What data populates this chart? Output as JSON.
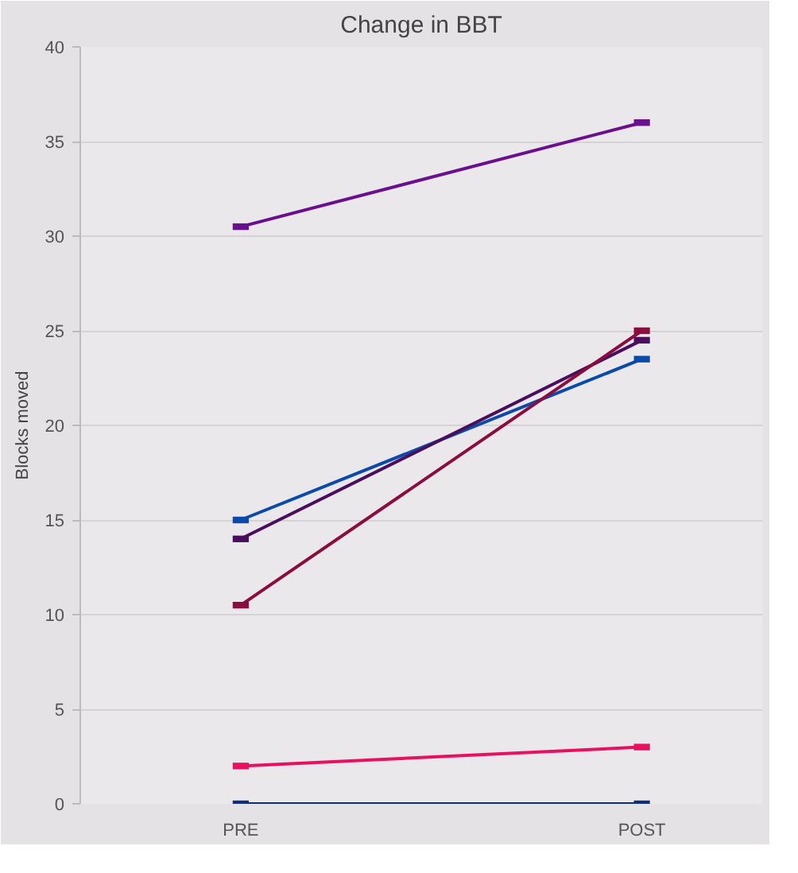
{
  "chart_data": {
    "type": "line",
    "title": "Change in BBT",
    "ylabel": "Blocks moved",
    "categories": [
      "PRE",
      "POST"
    ],
    "series": [
      {
        "color": "#6a0f8e",
        "values": [
          30.5,
          36
        ]
      },
      {
        "color": "#0b4aa8",
        "values": [
          15,
          23.5
        ]
      },
      {
        "color": "#4a0e5c",
        "values": [
          14,
          24.5
        ]
      },
      {
        "color": "#8b0c3f",
        "values": [
          10.5,
          25
        ]
      },
      {
        "color": "#e8115f",
        "values": [
          2,
          3
        ]
      },
      {
        "color": "#0b2f7e",
        "values": [
          0,
          0
        ]
      }
    ],
    "ylim": [
      0,
      40
    ],
    "yticks": [
      0,
      5,
      10,
      15,
      20,
      25,
      30,
      35,
      40
    ],
    "grid": "y",
    "marker": "square",
    "line_style": "solid"
  }
}
